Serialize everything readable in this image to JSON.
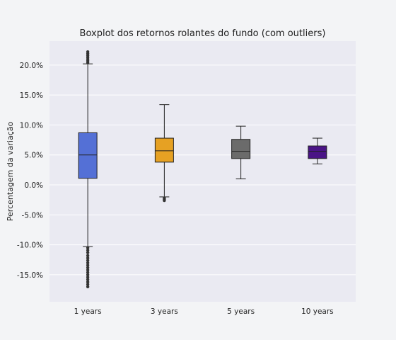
{
  "chart_data": {
    "type": "boxplot",
    "title": "Boxplot dos retornos rolantes do fundo (com outliers)",
    "xlabel": "",
    "ylabel": "Percentagem da variação",
    "ylim": [
      -19.5,
      24.0
    ],
    "yticks": [
      -15,
      -10,
      -5,
      0,
      5,
      10,
      15,
      20
    ],
    "ytick_labels": [
      "-15.0%",
      "-10.0%",
      "-5.0%",
      "0.0%",
      "5.0%",
      "10.0%",
      "15.0%",
      "20.0%"
    ],
    "grid": true,
    "categories": [
      "1 years",
      "3 years",
      "5 years",
      "10 years"
    ],
    "boxes": [
      {
        "label": "1 years",
        "color": "#5470d6",
        "whisker_low": -10.3,
        "q1": 1.1,
        "median": 5.0,
        "q3": 8.7,
        "whisker_high": 20.2,
        "outliers": [
          20.4,
          20.7,
          21.0,
          21.3,
          21.6,
          21.9,
          22.2,
          -10.5,
          -10.9,
          -11.3,
          -11.8,
          -12.2,
          -12.6,
          -13.0,
          -13.4,
          -13.8,
          -14.2,
          -14.6,
          -15.0,
          -15.4,
          -15.8,
          -16.2,
          -16.6,
          -17.0
        ]
      },
      {
        "label": "3 years",
        "color": "#e6a123",
        "whisker_low": -2.0,
        "q1": 3.8,
        "median": 5.7,
        "q3": 7.8,
        "whisker_high": 13.4,
        "outliers": [
          -2.2,
          -2.4,
          -2.6
        ]
      },
      {
        "label": "5 years",
        "color": "#6b6b6b",
        "whisker_low": 1.0,
        "q1": 4.4,
        "median": 5.6,
        "q3": 7.6,
        "whisker_high": 9.8,
        "outliers": []
      },
      {
        "label": "10 years",
        "color": "#4a1486",
        "whisker_low": 3.5,
        "q1": 4.4,
        "median": 5.6,
        "q3": 6.5,
        "whisker_high": 7.8,
        "outliers": []
      }
    ]
  }
}
